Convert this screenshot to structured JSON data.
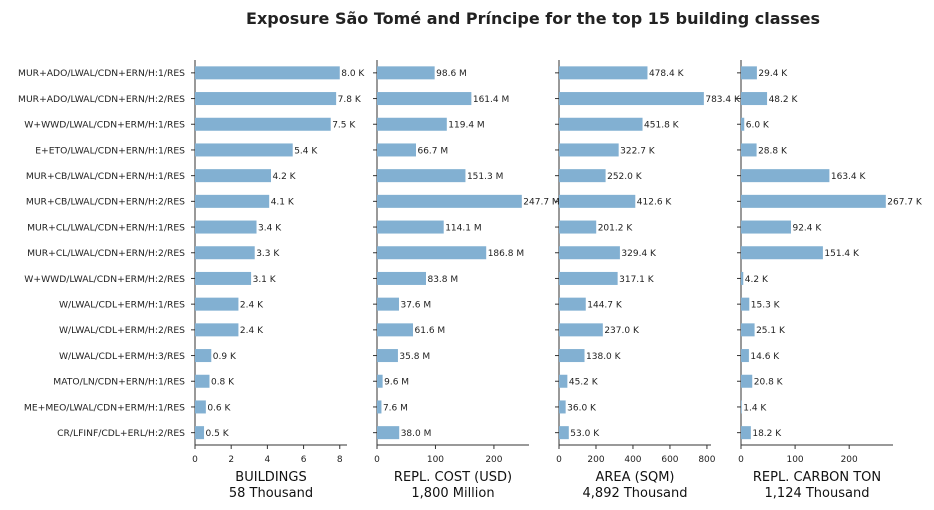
{
  "chart_data": {
    "type": "bar",
    "orientation": "horizontal",
    "title": "Exposure São Tomé and Príncipe for the top 15 building classes",
    "bar_color": "#82b0d2",
    "categories": [
      "MUR+ADO/LWAL/CDN+ERN/H:1/RES",
      "MUR+ADO/LWAL/CDN+ERN/H:2/RES",
      "W+WWD/LWAL/CDN+ERM/H:1/RES",
      "E+ETO/LWAL/CDN+ERN/H:1/RES",
      "MUR+CB/LWAL/CDN+ERN/H:1/RES",
      "MUR+CB/LWAL/CDN+ERN/H:2/RES",
      "MUR+CL/LWAL/CDN+ERN/H:1/RES",
      "MUR+CL/LWAL/CDN+ERN/H:2/RES",
      "W+WWD/LWAL/CDN+ERM/H:2/RES",
      "W/LWAL/CDL+ERM/H:1/RES",
      "W/LWAL/CDL+ERM/H:2/RES",
      "W/LWAL/CDL+ERM/H:3/RES",
      "MATO/LN/CDN+ERN/H:1/RES",
      "ME+MEO/LWAL/CDN+ERM/H:1/RES",
      "CR/LFINF/CDL+ERL/H:2/RES"
    ],
    "panels": [
      {
        "xlabel": "BUILDINGS",
        "total": "58 Thousand",
        "xlim": [
          0,
          8.4
        ],
        "xticks": [
          0,
          2,
          4,
          6,
          8
        ],
        "xtick_labels": [
          "0",
          "2",
          "4",
          "6",
          "8"
        ],
        "values": [
          8.0,
          7.8,
          7.5,
          5.4,
          4.2,
          4.1,
          3.4,
          3.3,
          3.1,
          2.4,
          2.4,
          0.9,
          0.8,
          0.6,
          0.5
        ],
        "labels": [
          "8.0 K",
          "7.8 K",
          "7.5 K",
          "5.4 K",
          "4.2 K",
          "4.1 K",
          "3.4 K",
          "3.3 K",
          "3.1 K",
          "2.4 K",
          "2.4 K",
          "0.9 K",
          "0.8 K",
          "0.6 K",
          "0.5 K"
        ]
      },
      {
        "xlabel": "REPL. COST (USD)",
        "total": "1,800 Million",
        "xlim": [
          0,
          260
        ],
        "xticks": [
          0,
          100,
          200
        ],
        "xtick_labels": [
          "0",
          "100",
          "200"
        ],
        "values": [
          98.6,
          161.4,
          119.4,
          66.7,
          151.3,
          247.7,
          114.1,
          186.8,
          83.8,
          37.6,
          61.6,
          35.8,
          9.6,
          7.6,
          38.0
        ],
        "labels": [
          "98.6 M",
          "161.4 M",
          "119.4 M",
          "66.7 M",
          "151.3 M",
          "247.7 M",
          "114.1 M",
          "186.8 M",
          "83.8 M",
          "37.6 M",
          "61.6 M",
          "35.8 M",
          "9.6 M",
          "7.6 M",
          "38.0 M"
        ]
      },
      {
        "xlabel": "AREA (SQM)",
        "total": "4,892 Thousand",
        "xlim": [
          0,
          822
        ],
        "xticks": [
          0,
          200,
          400,
          600,
          800
        ],
        "xtick_labels": [
          "0",
          "200",
          "400",
          "600",
          "800"
        ],
        "values": [
          478.4,
          783.4,
          451.8,
          322.7,
          252.0,
          412.6,
          201.2,
          329.4,
          317.1,
          144.7,
          237.0,
          138.0,
          45.2,
          36.0,
          53.0
        ],
        "labels": [
          "478.4 K",
          "783.4 K",
          "451.8 K",
          "322.7 K",
          "252.0 K",
          "412.6 K",
          "201.2 K",
          "329.4 K",
          "317.1 K",
          "144.7 K",
          "237.0 K",
          "138.0 K",
          "45.2 K",
          "36.0 K",
          "53.0 K"
        ]
      },
      {
        "xlabel": "REPL. CARBON TON",
        "total": "1,124 Thousand",
        "xlim": [
          0,
          281
        ],
        "xticks": [
          0,
          100,
          200
        ],
        "xtick_labels": [
          "0",
          "100",
          "200"
        ],
        "values": [
          29.4,
          48.2,
          6.0,
          28.8,
          163.4,
          267.7,
          92.4,
          151.4,
          4.2,
          15.3,
          25.1,
          14.6,
          20.8,
          1.4,
          18.2
        ],
        "labels": [
          "29.4 K",
          "48.2 K",
          "6.0 K",
          "28.8 K",
          "163.4 K",
          "267.7 K",
          "92.4 K",
          "151.4 K",
          "4.2 K",
          "15.3 K",
          "25.1 K",
          "14.6 K",
          "20.8 K",
          "1.4 K",
          "18.2 K"
        ]
      }
    ]
  }
}
